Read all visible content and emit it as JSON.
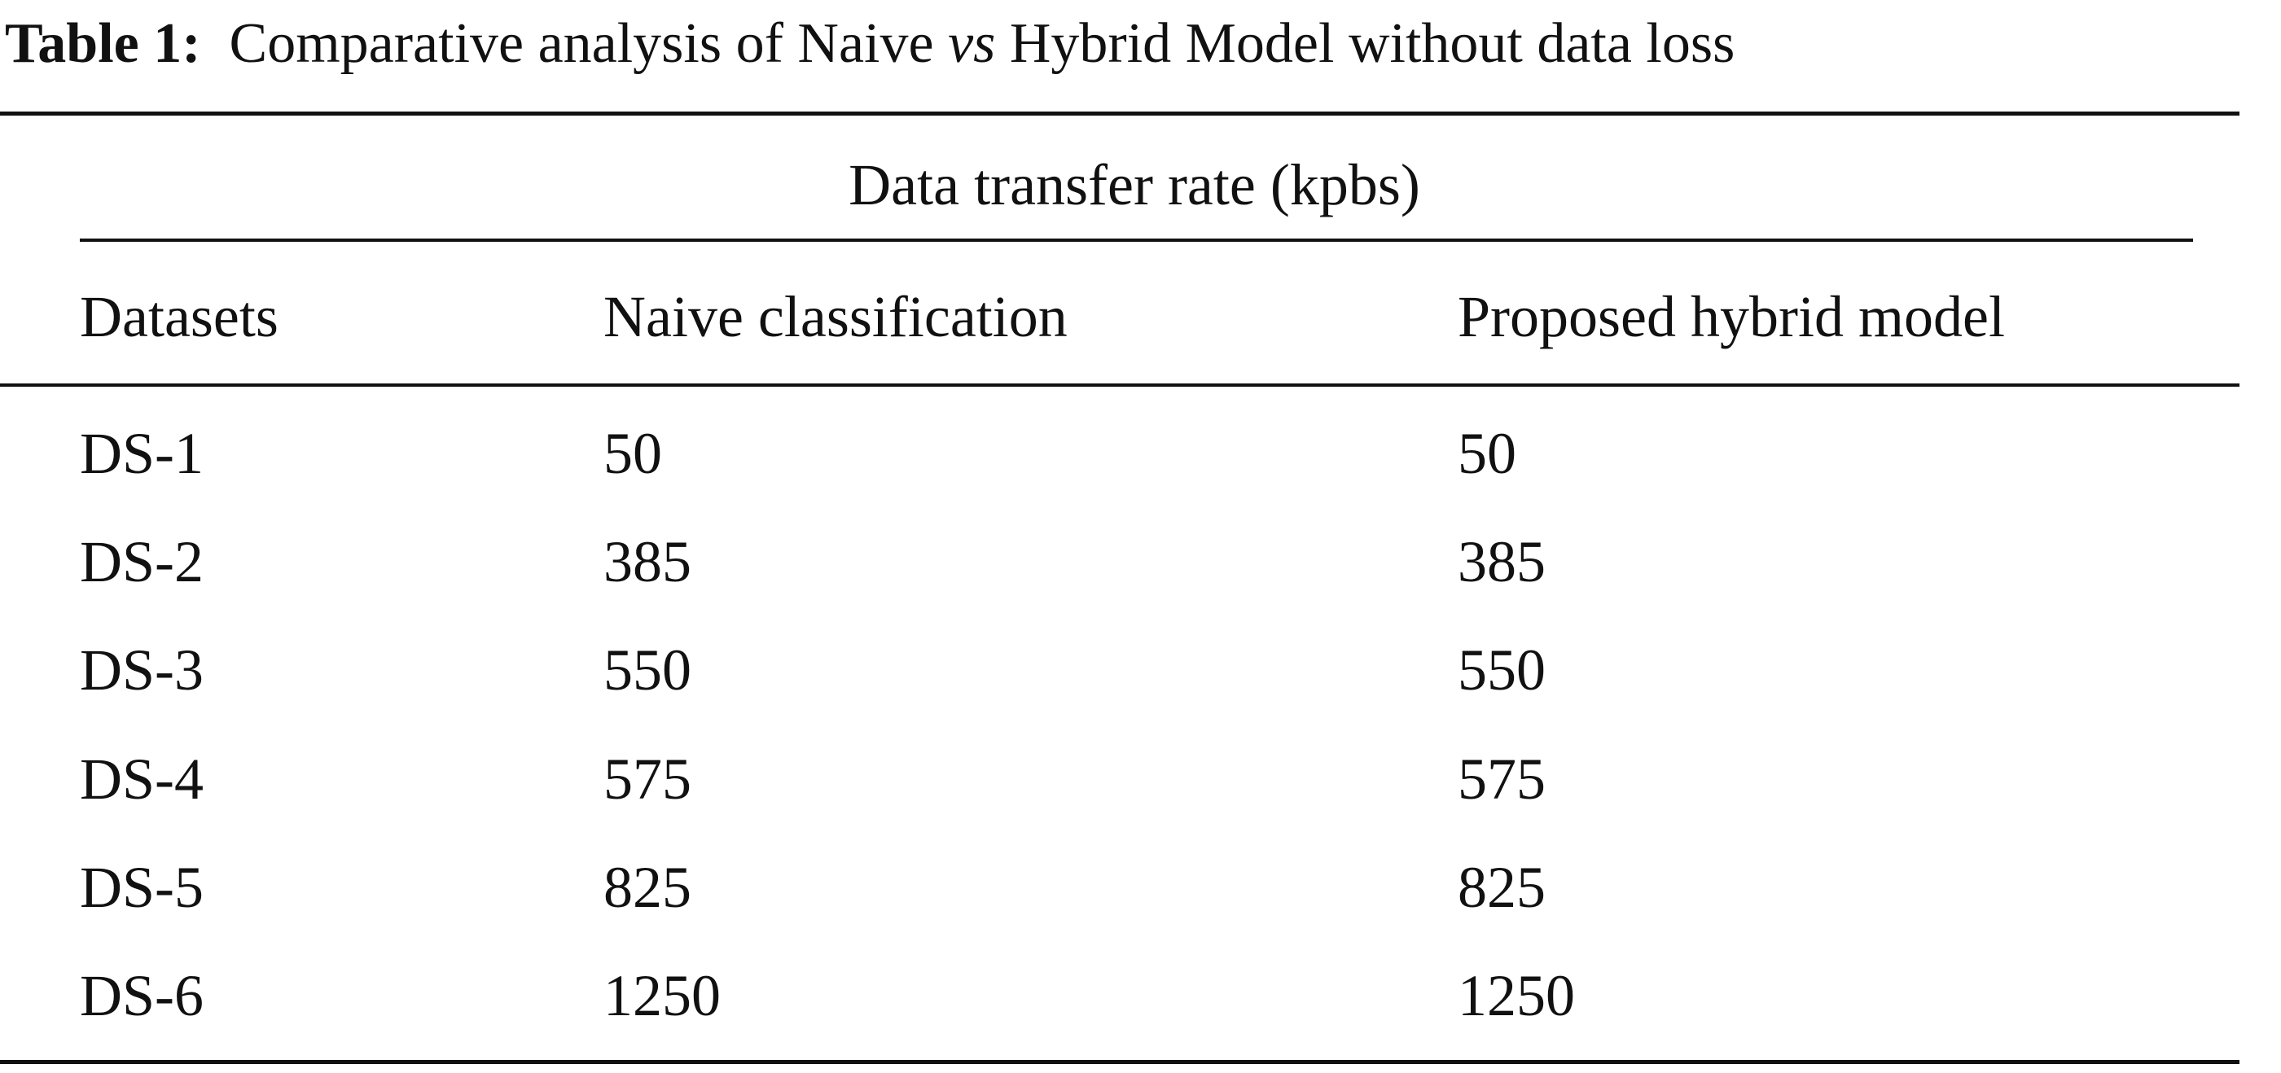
{
  "caption": {
    "label": "Table 1:",
    "text_before": "Comparative analysis of Naive",
    "emphasis": "vs",
    "text_after": "Hybrid Model without data loss"
  },
  "table": {
    "group_header": "Data transfer rate (kpbs)",
    "columns": [
      "Datasets",
      "Naive classification",
      "Proposed hybrid model"
    ],
    "rows": [
      [
        "DS-1",
        50,
        50
      ],
      [
        "DS-2",
        385,
        385
      ],
      [
        "DS-3",
        550,
        550
      ],
      [
        "DS-4",
        575,
        575
      ],
      [
        "DS-5",
        825,
        825
      ],
      [
        "DS-6",
        1250,
        1250
      ]
    ]
  }
}
